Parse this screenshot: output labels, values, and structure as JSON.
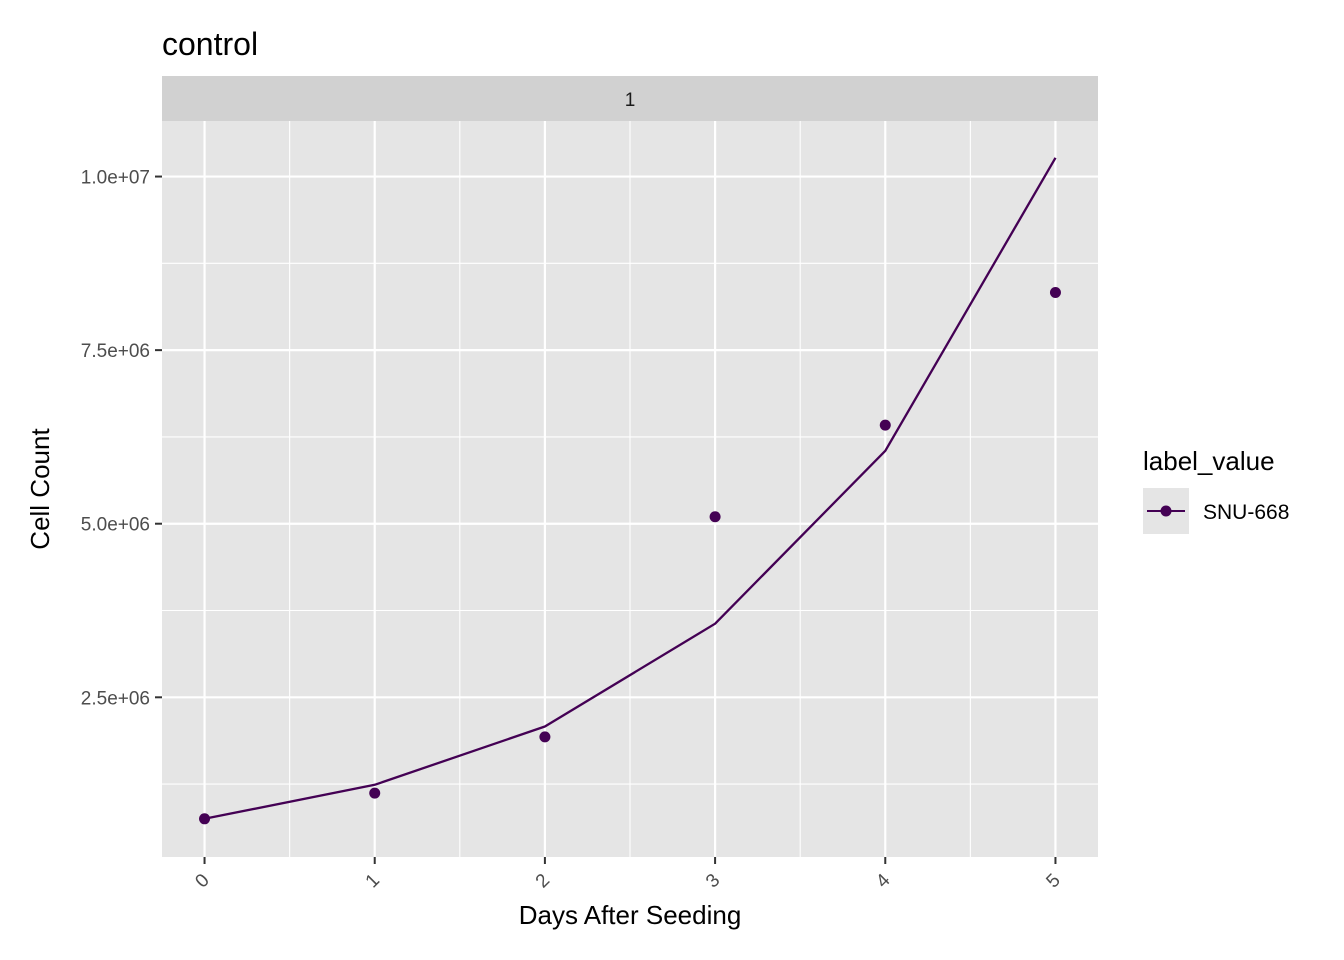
{
  "chart_data": {
    "type": "line",
    "title": "control",
    "facet_label": "1",
    "xlabel": "Days After Seeding",
    "ylabel": "Cell Count",
    "x": [
      0,
      1,
      2,
      3,
      4,
      5
    ],
    "x_tick_labels": [
      "0",
      "1",
      "2",
      "3",
      "4",
      "5"
    ],
    "xlim": [
      -0.25,
      5.25
    ],
    "ylim": [
      200000,
      10800000
    ],
    "y_ticks": [
      2500000,
      5000000,
      7500000,
      10000000
    ],
    "y_tick_labels": [
      "2.5e+06",
      "5.0e+06",
      "7.5e+06",
      "1.0e+07"
    ],
    "grid": true,
    "legend_position": "right",
    "legend": {
      "title": "label_value",
      "items": [
        "SNU-668"
      ]
    },
    "series": [
      {
        "name": "SNU-668",
        "color": "#440154",
        "points_y": [
          750000,
          1120000,
          1930000,
          5100000,
          6420000,
          8330000
        ],
        "fit_y": [
          750000,
          1240000,
          2080000,
          3560000,
          6050000,
          10270000
        ]
      }
    ]
  },
  "colors": {
    "panel_bg": "#e5e5e5",
    "strip_bg": "#d1d1d1",
    "grid": "#ffffff",
    "series": "#440154"
  }
}
